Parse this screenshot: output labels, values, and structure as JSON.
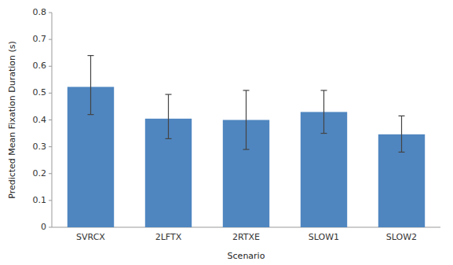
{
  "chart_data": {
    "type": "bar",
    "categories": [
      "SVRCX",
      "2LFTX",
      "2RTXE",
      "SLOW1",
      "SLOW2"
    ],
    "values": [
      0.5231,
      0.4047,
      0.3999,
      0.4296,
      0.3463
    ],
    "errors_upper": [
      0.1169,
      0.0903,
      0.1101,
      0.0804,
      0.0687
    ],
    "errors_lower": [
      0.1031,
      0.0747,
      0.1099,
      0.0796,
      0.0663
    ],
    "color": "#4F86C0",
    "xlabel": "Scenario",
    "ylabel": "Predicted Mean Fixation Duration (s)",
    "ylim": [
      0,
      0.8
    ],
    "yticks": [
      0,
      0.1,
      0.2,
      0.3,
      0.4,
      0.5,
      0.6,
      0.7,
      0.8
    ],
    "grid": false
  }
}
